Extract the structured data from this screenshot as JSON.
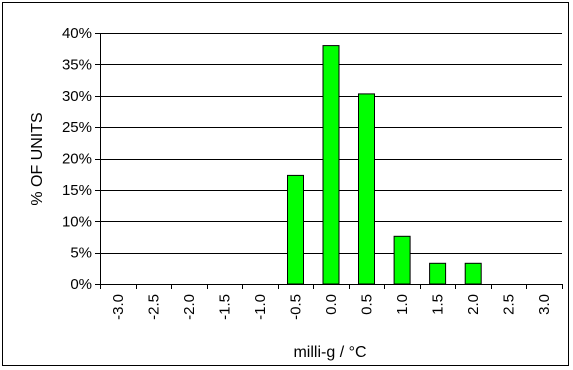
{
  "chart_data": {
    "type": "bar",
    "title": "",
    "xlabel": "milli-g / °C",
    "ylabel": "% OF UNITS",
    "categories": [
      "-3.0",
      "-2.5",
      "-2.0",
      "-1.5",
      "-1.0",
      "-0.5",
      "0.0",
      "0.5",
      "1.0",
      "1.5",
      "2.0",
      "2.5",
      "3.0"
    ],
    "values": [
      0,
      0,
      0,
      0,
      0,
      17.3,
      38.0,
      30.3,
      7.6,
      3.3,
      3.3,
      0,
      0
    ],
    "ylim": [
      0,
      40
    ],
    "yticks": [
      0,
      5,
      10,
      15,
      20,
      25,
      30,
      35,
      40
    ],
    "ytick_labels": [
      "0%",
      "5%",
      "10%",
      "15%",
      "20%",
      "25%",
      "30%",
      "35%",
      "40%"
    ],
    "grid": "horizontal",
    "legend": "none",
    "bar_color": "#00ff00",
    "bar_edge_color": "#000000"
  }
}
